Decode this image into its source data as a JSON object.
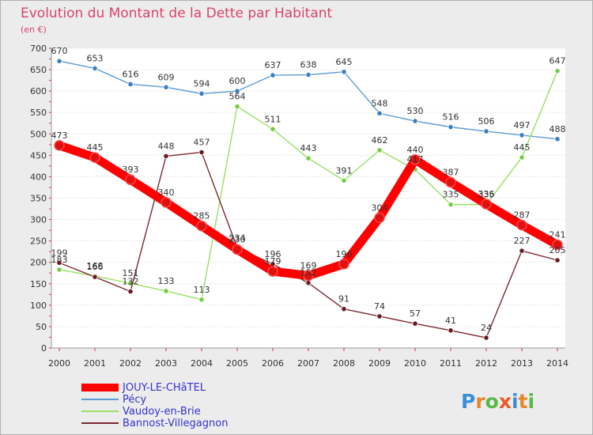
{
  "chart_data": {
    "type": "line",
    "title": "Evolution du Montant de la Dette par Habitant",
    "subtitle": "(en €)",
    "xlabel": "",
    "ylabel": "",
    "ylim": [
      0,
      700
    ],
    "yticks": [
      0,
      50,
      100,
      150,
      200,
      250,
      300,
      350,
      400,
      450,
      500,
      550,
      600,
      650,
      700
    ],
    "x": [
      "2000",
      "2001",
      "2002",
      "2003",
      "2004",
      "2005",
      "2006",
      "2007",
      "2008",
      "2009",
      "2010",
      "2011",
      "2012",
      "2013",
      "2014"
    ],
    "grid": "horizontal",
    "legend_position": "bottom-left",
    "series": [
      {
        "name": "JOUY-LE-CHâTEL",
        "color": "#ff0000",
        "marker": "#e01010",
        "thick": true,
        "values": [
          473,
          445,
          393,
          340,
          285,
          230,
          179,
          169,
          196,
          304,
          440,
          387,
          336,
          287,
          241
        ]
      },
      {
        "name": "Pécy",
        "color": "#5b9bd5",
        "marker": "#3a7fc0",
        "thick": false,
        "values": [
          670,
          653,
          616,
          609,
          594,
          600,
          637,
          638,
          645,
          548,
          530,
          516,
          506,
          497,
          488
        ]
      },
      {
        "name": "Vaudoy-en-Brie",
        "color": "#99e064",
        "marker": "#77cc44",
        "thick": false,
        "values": [
          183,
          168,
          151,
          133,
          113,
          564,
          511,
          443,
          391,
          462,
          417,
          335,
          335,
          445,
          647
        ]
      },
      {
        "name": "Bannost-Villegagnon",
        "color": "#7a2a30",
        "marker": "#6a1a20",
        "thick": false,
        "values": [
          199,
          166,
          132,
          448,
          457,
          234,
          196,
          152,
          91,
          74,
          57,
          41,
          24,
          227,
          205
        ]
      }
    ]
  },
  "logo": {
    "text": "Proxiti",
    "letters": [
      "P",
      "r",
      "o",
      "x",
      "i",
      "t",
      "i"
    ],
    "colors": [
      "#3a8fd8",
      "#e8862a",
      "#58b848",
      "#e85a2a",
      "#3a8fd8",
      "#e8862a",
      "#58b848"
    ]
  }
}
